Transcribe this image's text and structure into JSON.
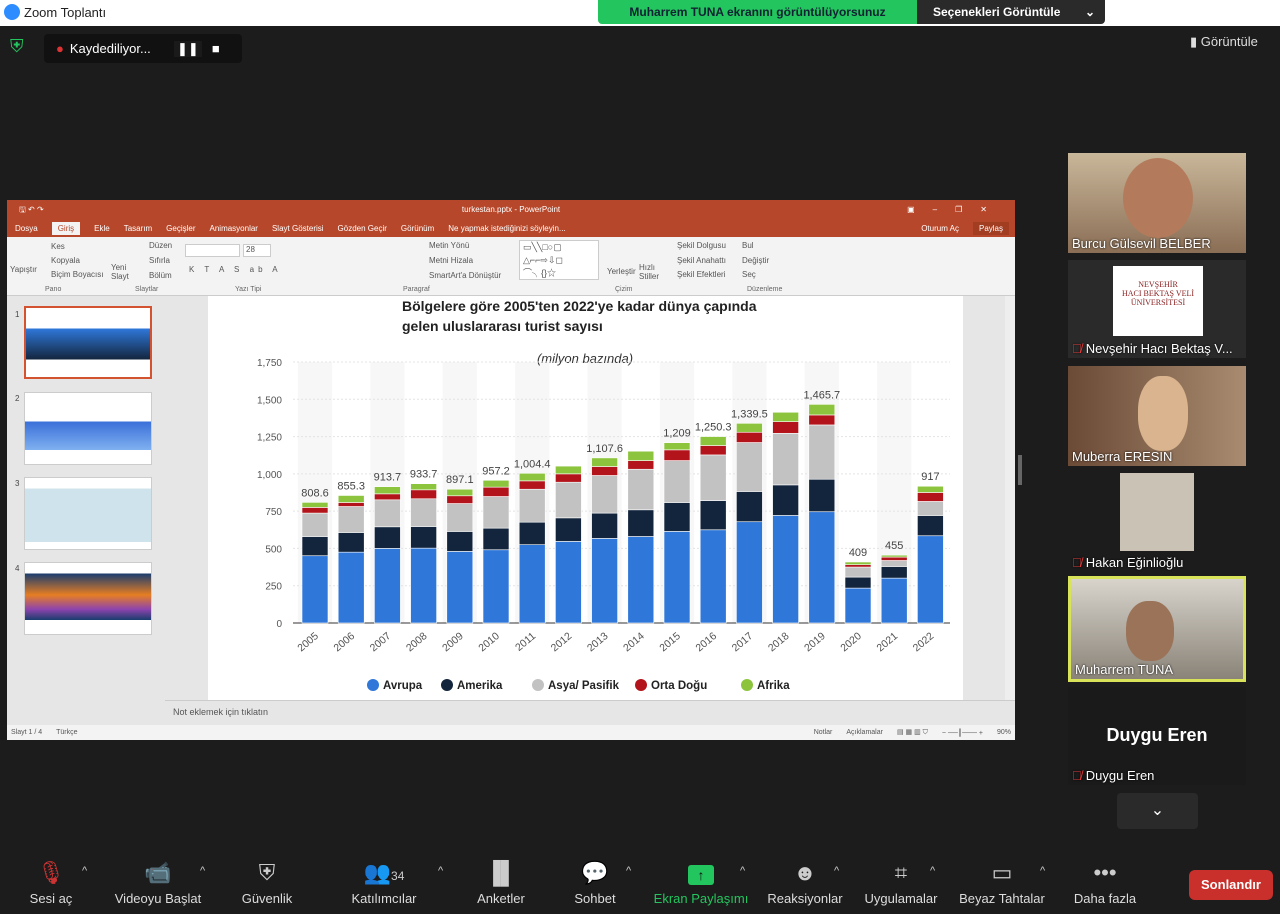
{
  "window": {
    "title": "Zoom Toplantı"
  },
  "share_banner": {
    "text": "Muharrem TUNA ekranını görüntülüyorsunuz",
    "options": "Seçenekleri Görüntüle"
  },
  "recording": {
    "label": "Kaydediliyor..."
  },
  "view_button": "Görüntüle",
  "ppt": {
    "title": "turkestan.pptx - PowerPoint",
    "tabs": [
      "Dosya",
      "Giriş",
      "Ekle",
      "Tasarım",
      "Geçişler",
      "Animasyonlar",
      "Slayt Gösterisi",
      "Gözden Geçir",
      "Görünüm",
      "Ne yapmak istediğinizi söyleyin..."
    ],
    "signin": "Oturum Aç",
    "share": "Paylaş",
    "ribbon": {
      "pano": {
        "label": "Pano",
        "paste": "Yapıştır",
        "cut": "Kes",
        "copy": "Kopyala",
        "format_painter": "Biçim Boyacısı"
      },
      "slaytlar": {
        "label": "Slaytlar",
        "new": "Yeni Slayt",
        "layout": "Düzen",
        "reset": "Sıfırla",
        "section": "Bölüm"
      },
      "yazitipi": {
        "label": "Yazı Tipi",
        "size": "28"
      },
      "paragraf": {
        "label": "Paragraf",
        "text_dir": "Metin Yönü",
        "align": "Metni Hizala",
        "smartart": "SmartArt'a Dönüştür"
      },
      "cizim": {
        "label": "Çizim",
        "arrange": "Yerleştir",
        "quick": "Hızlı Stiller",
        "fill": "Şekil Dolgusu",
        "outline": "Şekil Anahattı",
        "effects": "Şekil Efektleri"
      },
      "duzenleme": {
        "label": "Düzenleme",
        "find": "Bul",
        "replace": "Değiştir",
        "select": "Seç"
      }
    },
    "slide_numbers": [
      "1",
      "2",
      "3",
      "4"
    ],
    "notes_placeholder": "Not eklemek için tıklatın",
    "status": {
      "slide": "Slayt 1 / 4",
      "lang": "Türkçe",
      "notes": "Notlar",
      "comments": "Açıklamalar",
      "zoom": "90%"
    }
  },
  "slide": {
    "title_line1": "Bölgelere göre 2005'ten 2022'ye kadar dünya çapında",
    "title_line2": "gelen uluslararası turist sayısı"
  },
  "chart_data": {
    "type": "bar",
    "stacked": true,
    "subtitle": "(milyon bazında)",
    "categories": [
      "2005",
      "2006",
      "2007",
      "2008",
      "2009",
      "2010",
      "2011",
      "2012",
      "2013",
      "2014",
      "2015",
      "2016",
      "2017",
      "2018",
      "2019",
      "2020",
      "2021",
      "2022"
    ],
    "series": [
      {
        "name": "Avrupa",
        "color": "#2f77d9",
        "values": [
          451,
          475,
          500,
          502,
          480,
          491,
          525,
          547,
          567,
          580,
          614,
          625,
          679,
          721,
          746,
          234,
          301,
          585
        ]
      },
      {
        "name": "Amerika",
        "color": "#13253d",
        "values": [
          129,
          132,
          145,
          145,
          134,
          145,
          151,
          158,
          170,
          179,
          194,
          196,
          203,
          205,
          218,
          74,
          78,
          136
        ]
      },
      {
        "name": "Asya/ Pasifik",
        "color": "#c2c2c2",
        "values": [
          157,
          174,
          181,
          186,
          187,
          212,
          221,
          239,
          252,
          272,
          281,
          306,
          328,
          346,
          364,
          67,
          40,
          94
        ]
      },
      {
        "name": "Orta Doğu",
        "color": "#b3141b",
        "values": [
          38,
          27,
          40,
          60,
          52,
          63,
          56,
          56,
          60,
          58,
          72,
          63,
          69,
          78,
          67,
          16,
          23,
          60
        ]
      },
      {
        "name": "Afrika",
        "color": "#8cc43d",
        "values": [
          34,
          47,
          48,
          41,
          44,
          46,
          51,
          52,
          58,
          63,
          48,
          60,
          60,
          63,
          71,
          18,
          13,
          42
        ]
      }
    ],
    "totals": [
      "808.6",
      "855.3",
      "913.7",
      "933.7",
      "897.1",
      "957.2",
      "1,004.4",
      "",
      "1,107.6",
      "",
      "1,209",
      "1,250.3",
      "1,339.5",
      "",
      "1,465.7",
      "409",
      "455",
      "917"
    ],
    "yticks": [
      "0",
      "250",
      "500",
      "750",
      "1,000",
      "1,250",
      "1,500",
      "1,750"
    ],
    "ylim": [
      0,
      1750
    ],
    "grid": true,
    "legend": "bottom"
  },
  "participants": [
    {
      "name": "Burcu Gülsevil BELBER",
      "muted": false
    },
    {
      "name": "Nevşehir Hacı Bektaş V...",
      "muted": true,
      "logo": "NEVŞEHİR HACI BEKTAŞ VELİ ÜNİVERSİTESİ"
    },
    {
      "name": "Muberra ERESIN",
      "muted": false
    },
    {
      "name": "Hakan Eğinlioğlu",
      "muted": true
    },
    {
      "name": "Muharrem TUNA",
      "muted": false,
      "active": true
    },
    {
      "name": "Duygu Eren",
      "muted": true,
      "big": "Duygu Eren"
    }
  ],
  "toolbar": {
    "items": [
      "Sesi aç",
      "Videoyu Başlat",
      "Güvenlik",
      "Katılımcılar",
      "Anketler",
      "Sohbet",
      "Ekran Paylaşımı",
      "Reaksiyonlar",
      "Uygulamalar",
      "Beyaz Tahtalar",
      "Daha fazla"
    ],
    "participant_count": "34",
    "end": "Sonlandır",
    "accent": "#23c55e",
    "end_color": "#c9302c"
  }
}
